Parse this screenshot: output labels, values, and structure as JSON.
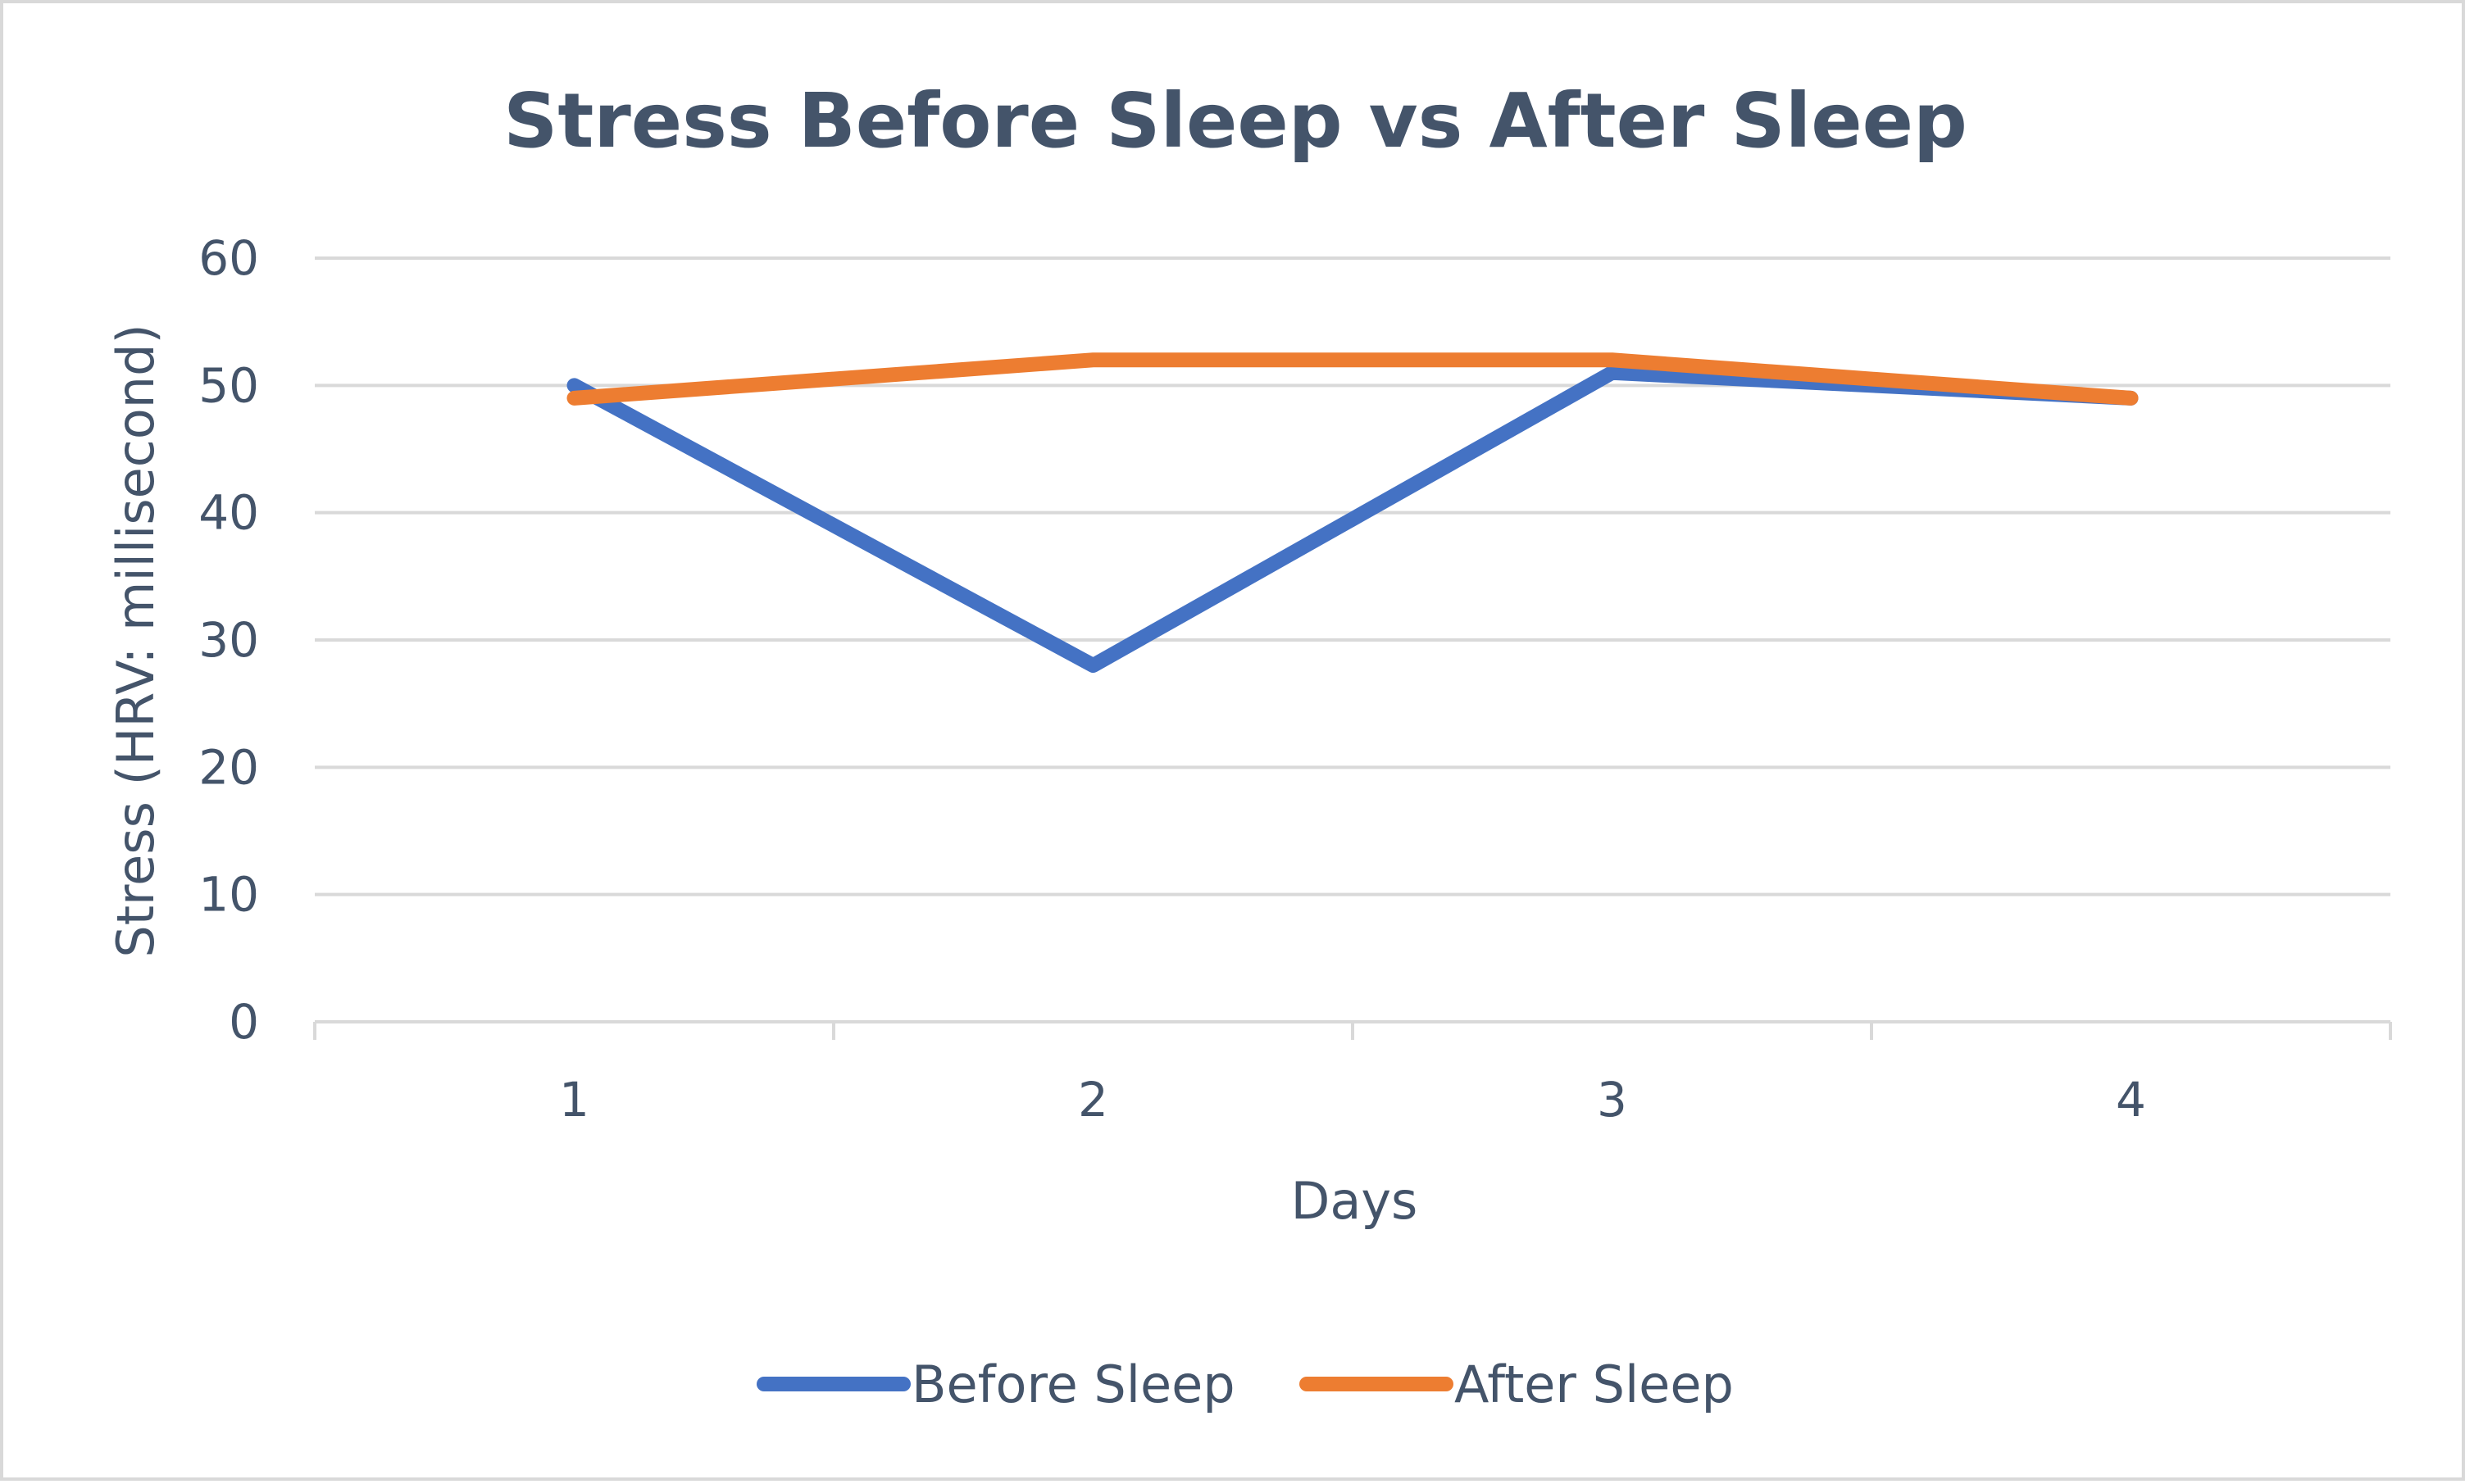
{
  "chart_data": {
    "type": "line",
    "title": "Stress Before Sleep vs After Sleep",
    "xlabel": "Days",
    "ylabel": "Stress (HRV: millisecond)",
    "categories": [
      "1",
      "2",
      "3",
      "4"
    ],
    "ylim": [
      0,
      60
    ],
    "yticks": [
      "0",
      "10",
      "20",
      "30",
      "40",
      "50",
      "60"
    ],
    "grid": true,
    "legend_position": "bottom",
    "series": [
      {
        "name": "Before Sleep",
        "color": "#4472c4",
        "values": [
          50,
          28,
          51,
          49
        ]
      },
      {
        "name": "After Sleep",
        "color": "#ed7d31",
        "values": [
          49,
          52,
          52,
          49
        ]
      }
    ]
  }
}
